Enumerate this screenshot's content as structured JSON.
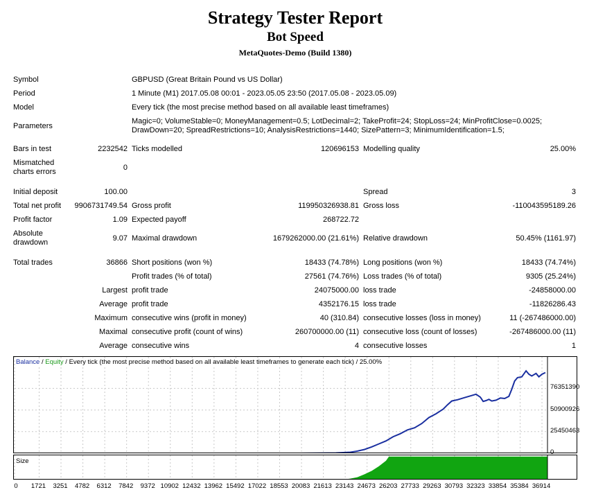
{
  "header": {
    "title": "Strategy Tester Report",
    "subtitle": "Bot Speed",
    "build": "MetaQuotes-Demo (Build 1380)"
  },
  "info": {
    "symbol_label": "Symbol",
    "symbol_value": "GBPUSD (Great Britain Pound vs US Dollar)",
    "period_label": "Period",
    "period_value": "1 Minute (M1) 2017.05.08 00:01 - 2023.05.05 23:50 (2017.05.08 - 2023.05.09)",
    "model_label": "Model",
    "model_value": "Every tick (the most precise method based on all available least timeframes)",
    "parameters_label": "Parameters",
    "parameters_line1": "Magic=0; VolumeStable=0; MoneyManagement=0.5; LotDecimal=2; TakeProfit=24; StopLoss=24; MinProfitClose=0.0025;",
    "parameters_line2": "DrawDown=20; SpreadRestrictions=10; AnalysisRestrictions=1440; SizePattern=3; MinimumIdentification=1.5;"
  },
  "stats": {
    "bars_label": "Bars in test",
    "bars_value": "2232542",
    "ticks_label": "Ticks modelled",
    "ticks_value": "120696153",
    "quality_label": "Modelling quality",
    "quality_value": "25.00%",
    "mismatch_label_1": "Mismatched",
    "mismatch_label_2": "charts errors",
    "mismatch_value": "0",
    "deposit_label": "Initial deposit",
    "deposit_value": "100.00",
    "spread_label": "Spread",
    "spread_value": "3",
    "net_label": "Total net profit",
    "net_value": "9906731749.54",
    "gross_profit_label": "Gross profit",
    "gross_profit_value": "119950326938.81",
    "gross_loss_label": "Gross loss",
    "gross_loss_value": "-110043595189.26",
    "pf_label": "Profit factor",
    "pf_value": "1.09",
    "payoff_label": "Expected payoff",
    "payoff_value": "268722.72",
    "abs_dd_label_1": "Absolute",
    "abs_dd_label_2": "drawdown",
    "abs_dd_value": "9.07",
    "max_dd_label": "Maximal drawdown",
    "max_dd_value": "1679262000.00 (21.61%)",
    "rel_dd_label": "Relative drawdown",
    "rel_dd_value": "50.45% (1161.97)",
    "trades_label": "Total trades",
    "trades_value": "36866",
    "short_label": "Short positions (won %)",
    "short_value": "18433 (74.78%)",
    "long_label": "Long positions (won %)",
    "long_value": "18433 (74.74%)",
    "profit_trades_label": "Profit trades (% of total)",
    "profit_trades_value": "27561 (74.76%)",
    "loss_trades_label": "Loss trades (% of total)",
    "loss_trades_value": "9305 (25.24%)",
    "largest_label": "Largest",
    "largest_profit_label": "profit trade",
    "largest_profit_value": "24075000.00",
    "largest_loss_label": "loss trade",
    "largest_loss_value": "-24858000.00",
    "average_label": "Average",
    "average_profit_label": "profit trade",
    "average_profit_value": "4352176.15",
    "average_loss_label": "loss trade",
    "average_loss_value": "-11826286.43",
    "maximum_label": "Maximum",
    "max_cons_wins_label": "consecutive wins (profit in money)",
    "max_cons_wins_value": "40 (310.84)",
    "max_cons_losses_label": "consecutive losses (loss in money)",
    "max_cons_losses_value": "11 (-267486000.00)",
    "maximal_label": "Maximal",
    "maximal_cons_profit_label": "consecutive profit (count of wins)",
    "maximal_cons_profit_value": "260700000.00 (11)",
    "maximal_cons_loss_label": "consecutive loss (count of losses)",
    "maximal_cons_loss_value": "-267486000.00 (11)",
    "average2_label": "Average",
    "avg_cons_wins_label": "consecutive wins",
    "avg_cons_wins_value": "4",
    "avg_cons_losses_label": "consecutive losses",
    "avg_cons_losses_value": "1"
  },
  "chart_legend": {
    "balance": "Balance",
    "sep": " / ",
    "equity": "Equity",
    "rest": " / Every tick (the most precise method based on all available least timeframes to generate each tick) / 25.00%"
  },
  "size_label": "Size",
  "colors": {
    "balance": "#1a2fa0",
    "equity": "#1c9a1c",
    "grid": "#c8c8c8"
  },
  "chart_data": {
    "type": "line",
    "title": "",
    "xlabel": "",
    "ylabel": "",
    "xlim": [
      0,
      37300
    ],
    "ylim": [
      0,
      102000000
    ],
    "grid": true,
    "legend": "top-left",
    "x_ticks": [
      0,
      1721,
      3251,
      4782,
      6312,
      7842,
      9372,
      10902,
      12432,
      13962,
      15492,
      17022,
      18553,
      20083,
      21613,
      23143,
      24673,
      26203,
      27733,
      29263,
      30793,
      32323,
      33854,
      35384,
      36914
    ],
    "y_ticks": [
      0,
      25450463,
      50900926,
      76351390
    ],
    "series": [
      {
        "name": "Balance",
        "x": [
          0,
          2000,
          5000,
          10000,
          15000,
          20000,
          22500,
          23500,
          24000,
          24500,
          25000,
          25500,
          26000,
          26500,
          27000,
          27500,
          28000,
          28500,
          29000,
          29500,
          30000,
          30300,
          30600,
          31000,
          31500,
          32000,
          32300,
          32600,
          32800,
          33000,
          33200,
          33400,
          33700,
          34000,
          34300,
          34600,
          34800,
          35000,
          35200,
          35500,
          35800,
          36000,
          36200,
          36500,
          36700,
          36914,
          37150
        ],
        "y": [
          100,
          100,
          100,
          100,
          100,
          100,
          400000,
          1200000,
          2500000,
          4500000,
          7500000,
          11000000,
          14500000,
          19500000,
          23000000,
          27500000,
          30000000,
          35000000,
          42000000,
          46500000,
          52000000,
          57000000,
          61500000,
          63000000,
          65500000,
          68000000,
          69500000,
          66000000,
          61000000,
          62000000,
          63500000,
          61500000,
          62500000,
          65000000,
          64500000,
          67000000,
          75500000,
          85000000,
          89000000,
          90000000,
          97000000,
          93000000,
          91000000,
          94000000,
          90000000,
          93000000,
          95000000
        ]
      }
    ],
    "size_series": {
      "name": "Size",
      "x": [
        0,
        23000,
        23500,
        24000,
        24500,
        25000,
        25500,
        26000,
        26200,
        37300
      ],
      "y": [
        0,
        0,
        0.04,
        0.1,
        0.22,
        0.36,
        0.55,
        0.78,
        0.95,
        0.95
      ]
    }
  }
}
